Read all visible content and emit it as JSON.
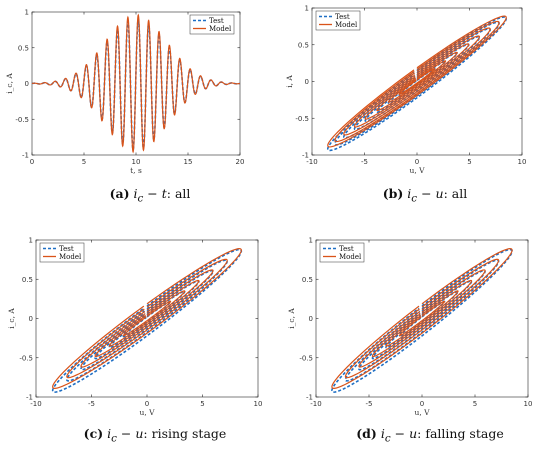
{
  "colors": {
    "test": "#1f6fc4",
    "model": "#d95319",
    "axis": "#262626"
  },
  "captions": [
    {
      "tag": "(a)",
      "var1": "i",
      "sub1": "c",
      "op": " − ",
      "var2": "t",
      "rest": ": all"
    },
    {
      "tag": "(b)",
      "var1": "i",
      "sub1": "c",
      "op": " − ",
      "var2": "u",
      "rest": ": all"
    },
    {
      "tag": "(c)",
      "var1": "i",
      "sub1": "c",
      "op": " − ",
      "var2": "u",
      "rest": ": rising stage"
    },
    {
      "tag": "(d)",
      "var1": "i",
      "sub1": "c",
      "op": " − ",
      "var2": "u",
      "rest": ": falling stage"
    }
  ],
  "chart_data": [
    {
      "type": "line",
      "panel": "a",
      "xlabel": "t, s",
      "ylabel": "i_c, A",
      "xlim": [
        0,
        20
      ],
      "ylim": [
        -1,
        1
      ],
      "xticks": [
        "0",
        "5",
        "10",
        "15",
        "20"
      ],
      "yticks": [
        "-1",
        "-0.5",
        "0",
        "0.5",
        "1"
      ],
      "legend": [
        "Test",
        "Model"
      ],
      "legend_position": "top-right",
      "signal": {
        "frequency_hz": 1,
        "envelope_peak_time_s": 10,
        "peak_model_A": 0.96,
        "min_test_A": -0.92
      }
    },
    {
      "type": "line",
      "panel": "b",
      "xlabel": "u, V",
      "ylabel": "i, A",
      "xlim": [
        -10,
        10
      ],
      "ylim": [
        -1,
        1
      ],
      "xticks": [
        "-10",
        "-5",
        "0",
        "5",
        "10"
      ],
      "yticks": [
        "-1",
        "-0.5",
        "0",
        "0.5",
        "1"
      ],
      "legend": [
        "Test",
        "Model"
      ],
      "legend_position": "top-left",
      "loops": {
        "max_voltage_V": 8.5,
        "max_current_A": 0.95,
        "min_current_A": -0.92
      }
    },
    {
      "type": "line",
      "panel": "c",
      "xlabel": "u, V",
      "ylabel": "i_c, A",
      "xlim": [
        -10,
        10
      ],
      "ylim": [
        -1,
        1
      ],
      "xticks": [
        "-10",
        "-5",
        "0",
        "5",
        "10"
      ],
      "yticks": [
        "-1",
        "-0.5",
        "0",
        "0.5",
        "1"
      ],
      "legend": [
        "Test",
        "Model"
      ],
      "legend_position": "top-left",
      "loops": {
        "max_voltage_V": 8.5,
        "max_current_A": 0.92,
        "min_current_A": -0.92
      }
    },
    {
      "type": "line",
      "panel": "d",
      "xlabel": "u, V",
      "ylabel": "i_c, A",
      "xlim": [
        -10,
        10
      ],
      "ylim": [
        -1,
        1
      ],
      "xticks": [
        "-10",
        "-5",
        "0",
        "5",
        "10"
      ],
      "yticks": [
        "-1",
        "-0.5",
        "0",
        "0.5",
        "1"
      ],
      "legend": [
        "Test",
        "Model"
      ],
      "legend_position": "top-left",
      "loops": {
        "max_voltage_V": 8.5,
        "max_current_A": 0.95,
        "min_current_A": -0.92
      }
    }
  ]
}
